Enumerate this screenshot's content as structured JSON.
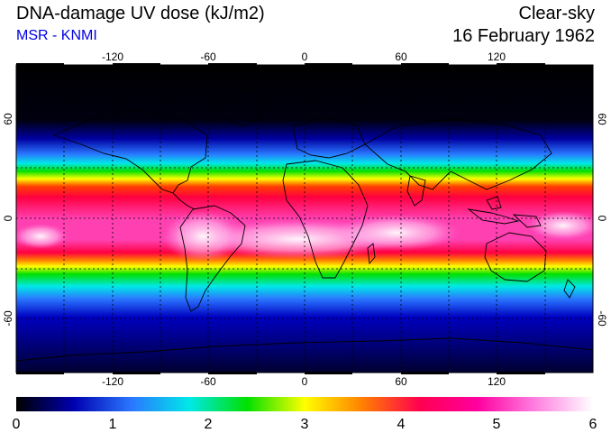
{
  "header": {
    "title": "DNA-damage UV dose (kJ/m2)",
    "source": "MSR - KNMI",
    "sky": "Clear-sky",
    "date": "16 February 1962"
  },
  "map": {
    "lon_ticks": [
      "-120",
      "-60",
      "0",
      "60",
      "120"
    ],
    "lat_ticks": [
      "60",
      "0",
      "-60"
    ]
  },
  "colorbar": {
    "tick_labels": [
      "0",
      "1",
      "2",
      "3",
      "4",
      "5",
      "6"
    ],
    "colors": [
      "#000000",
      "#0000b0",
      "#2a78ff",
      "#00e8e8",
      "#00e000",
      "#ffff00",
      "#ff8000",
      "#ff0050",
      "#ff00a0",
      "#ff80e0",
      "#ffffff"
    ]
  }
}
